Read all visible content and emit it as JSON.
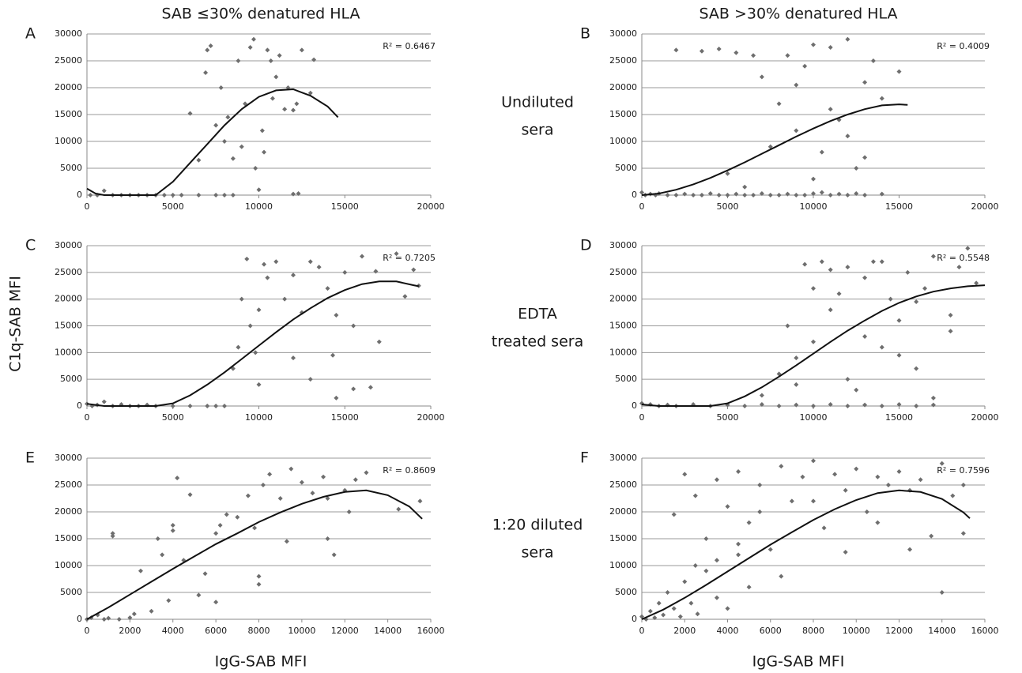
{
  "figure": {
    "column_titles": [
      "SAB ≤30% denatured HLA",
      "SAB >30% denatured HLA"
    ],
    "row_labels": [
      [
        "Undiluted",
        "sera"
      ],
      [
        "EDTA",
        "treated sera"
      ],
      [
        "1:20 diluted",
        "sera"
      ]
    ],
    "y_label": "C1q-SAB MFI",
    "x_label": "IgG-SAB MFI"
  },
  "chart_data": [
    {
      "type": "scatter",
      "panel": "A",
      "annotation": "R² = 0.6467",
      "xlim": [
        0,
        20000
      ],
      "xticks": [
        0,
        5000,
        10000,
        15000,
        20000
      ],
      "ylim": [
        0,
        30000
      ],
      "yticks": [
        0,
        5000,
        10000,
        15000,
        20000,
        25000,
        30000
      ],
      "grid": true,
      "color": "#6e6e6e",
      "trend_color": "#111111",
      "points": {
        "x": [
          200,
          600,
          1000,
          1500,
          2000,
          2500,
          3000,
          3500,
          4000,
          4500,
          5000,
          5500,
          6500,
          7500,
          8000,
          8500,
          6000,
          6500,
          6900,
          7000,
          7200,
          7500,
          7800,
          8000,
          8200,
          8500,
          8800,
          9000,
          9200,
          9500,
          9700,
          9800,
          10000,
          10200,
          10300,
          10500,
          10700,
          10800,
          11000,
          11200,
          11500,
          11700,
          12000,
          12200,
          12300,
          12500,
          13000,
          13200,
          12000
        ],
        "y": [
          0,
          0,
          800,
          0,
          0,
          0,
          0,
          0,
          0,
          0,
          0,
          0,
          0,
          0,
          0,
          0,
          15200,
          6500,
          22800,
          27000,
          27800,
          13000,
          20000,
          10000,
          14500,
          6800,
          25000,
          9000,
          17000,
          27500,
          29000,
          5000,
          1000,
          12000,
          8000,
          27000,
          25000,
          18000,
          22000,
          26000,
          16000,
          20000,
          15800,
          17000,
          300,
          27000,
          19000,
          25200,
          200
        ]
      },
      "trend": {
        "x": [
          0,
          500,
          1000,
          2000,
          3000,
          4000,
          5000,
          6000,
          7000,
          8000,
          9000,
          10000,
          11000,
          12000,
          13000,
          14000,
          14600
        ],
        "y": [
          1200,
          300,
          0,
          0,
          0,
          0,
          2500,
          6000,
          9500,
          13000,
          16000,
          18300,
          19500,
          19700,
          18500,
          16500,
          14500
        ]
      }
    },
    {
      "type": "scatter",
      "panel": "B",
      "annotation": "R² = 0.4009",
      "xlim": [
        0,
        20000
      ],
      "xticks": [
        0,
        5000,
        10000,
        15000,
        20000
      ],
      "ylim": [
        0,
        30000
      ],
      "yticks": [
        0,
        5000,
        10000,
        15000,
        20000,
        25000,
        30000
      ],
      "grid": true,
      "color": "#6e6e6e",
      "trend_color": "#111111",
      "points": {
        "x": [
          0,
          200,
          500,
          800,
          1000,
          1500,
          2000,
          2500,
          3000,
          3500,
          4000,
          4500,
          5000,
          5500,
          6000,
          6500,
          7000,
          7500,
          8000,
          8500,
          9000,
          9500,
          10000,
          10500,
          11000,
          11500,
          12000,
          12500,
          13000,
          14000,
          2000,
          3500,
          4500,
          5500,
          6500,
          7000,
          8000,
          8500,
          9000,
          9500,
          10000,
          10500,
          11000,
          11500,
          12000,
          12500,
          13000,
          13500,
          14000,
          15000,
          5000,
          6000,
          7500,
          9000,
          10000,
          11000,
          12000,
          13000
        ],
        "y": [
          500,
          0,
          200,
          0,
          300,
          0,
          0,
          200,
          0,
          0,
          300,
          0,
          0,
          200,
          0,
          0,
          300,
          0,
          0,
          200,
          0,
          0,
          300,
          500,
          0,
          200,
          0,
          300,
          0,
          200,
          27000,
          26800,
          27200,
          26500,
          26000,
          22000,
          17000,
          26000,
          12000,
          24000,
          28000,
          8000,
          27500,
          14000,
          29000,
          5000,
          21000,
          25000,
          18000,
          23000,
          4000,
          1500,
          9000,
          20500,
          3000,
          16000,
          11000,
          7000
        ]
      },
      "trend": {
        "x": [
          0,
          1000,
          2000,
          3000,
          4000,
          5000,
          6000,
          7000,
          8000,
          9000,
          10000,
          11000,
          12000,
          13000,
          14000,
          15000,
          15500
        ],
        "y": [
          0,
          300,
          1000,
          2000,
          3200,
          4600,
          6100,
          7700,
          9300,
          10900,
          12400,
          13800,
          15000,
          16000,
          16700,
          16900,
          16800
        ]
      }
    },
    {
      "type": "scatter",
      "panel": "C",
      "annotation": "R² = 0.7205",
      "xlim": [
        0,
        20000
      ],
      "xticks": [
        0,
        5000,
        10000,
        15000,
        20000
      ],
      "ylim": [
        0,
        30000
      ],
      "yticks": [
        0,
        5000,
        10000,
        15000,
        20000,
        25000,
        30000
      ],
      "grid": true,
      "color": "#6e6e6e",
      "trend_color": "#111111",
      "points": {
        "x": [
          0,
          300,
          600,
          1000,
          1500,
          2000,
          2500,
          3000,
          3500,
          4000,
          5000,
          6000,
          7000,
          7500,
          8000,
          8500,
          8800,
          9000,
          9300,
          9500,
          9800,
          10000,
          10300,
          10500,
          11000,
          11500,
          12000,
          12500,
          13000,
          13500,
          14000,
          14300,
          14500,
          15000,
          15500,
          16000,
          16500,
          17000,
          18000,
          18500,
          19000,
          19300,
          10000,
          12000,
          13000,
          14500,
          15500,
          16800
        ],
        "y": [
          400,
          0,
          200,
          800,
          0,
          300,
          0,
          0,
          200,
          0,
          0,
          0,
          0,
          0,
          0,
          7000,
          11000,
          20000,
          27500,
          15000,
          10000,
          18000,
          26500,
          24000,
          27000,
          20000,
          24500,
          17500,
          27000,
          26000,
          22000,
          9500,
          17000,
          25000,
          15000,
          28000,
          3500,
          12000,
          28500,
          20500,
          25500,
          22500,
          4000,
          9000,
          5000,
          1500,
          3200,
          25200
        ]
      },
      "trend": {
        "x": [
          0,
          1000,
          2000,
          3000,
          4000,
          5000,
          6000,
          7000,
          8000,
          9000,
          10000,
          11000,
          12000,
          13000,
          14000,
          15000,
          16000,
          17000,
          18000,
          19000,
          19300
        ],
        "y": [
          400,
          0,
          0,
          0,
          0,
          500,
          2000,
          4000,
          6300,
          8800,
          11300,
          13800,
          16200,
          18300,
          20200,
          21700,
          22800,
          23300,
          23300,
          22600,
          22400
        ]
      }
    },
    {
      "type": "scatter",
      "panel": "D",
      "annotation": "R² = 0.5548",
      "xlim": [
        0,
        20000
      ],
      "xticks": [
        0,
        5000,
        10000,
        15000,
        20000
      ],
      "ylim": [
        0,
        30000
      ],
      "yticks": [
        0,
        5000,
        10000,
        15000,
        20000,
        25000,
        30000
      ],
      "grid": true,
      "color": "#6e6e6e",
      "trend_color": "#111111",
      "points": {
        "x": [
          0,
          500,
          1000,
          1500,
          2000,
          3000,
          4000,
          5000,
          6000,
          7000,
          8000,
          9000,
          10000,
          11000,
          12000,
          13000,
          14000,
          15000,
          16000,
          17000,
          7000,
          8000,
          8500,
          9000,
          9500,
          10000,
          10500,
          11000,
          11500,
          12000,
          12500,
          13000,
          13500,
          14000,
          14500,
          15000,
          15500,
          16000,
          16500,
          17000,
          18000,
          18500,
          19000,
          19500,
          9000,
          10000,
          11000,
          12000,
          13000,
          14000,
          15000,
          16000,
          17000,
          18000
        ],
        "y": [
          500,
          300,
          0,
          200,
          0,
          300,
          0,
          200,
          0,
          300,
          0,
          200,
          0,
          300,
          0,
          200,
          0,
          300,
          0,
          200,
          2000,
          6000,
          15000,
          9000,
          26500,
          12000,
          27000,
          18000,
          21000,
          26000,
          3000,
          24000,
          27000,
          11000,
          20000,
          16000,
          25000,
          7000,
          22000,
          28000,
          17000,
          26000,
          29500,
          23000,
          4000,
          22000,
          25500,
          5000,
          13000,
          27000,
          9500,
          19500,
          1500,
          14000
        ]
      },
      "trend": {
        "x": [
          0,
          1000,
          2000,
          3000,
          4000,
          5000,
          6000,
          7000,
          8000,
          9000,
          10000,
          11000,
          12000,
          13000,
          14000,
          15000,
          16000,
          17000,
          18000,
          19000,
          20000
        ],
        "y": [
          300,
          0,
          0,
          0,
          0,
          500,
          1800,
          3500,
          5500,
          7600,
          9800,
          12000,
          14100,
          16000,
          17800,
          19300,
          20500,
          21400,
          22000,
          22400,
          22600
        ]
      }
    },
    {
      "type": "scatter",
      "panel": "E",
      "annotation": "R² = 0.8609",
      "xlim": [
        0,
        16000
      ],
      "xticks": [
        0,
        2000,
        4000,
        6000,
        8000,
        10000,
        12000,
        14000,
        16000
      ],
      "ylim": [
        0,
        30000
      ],
      "yticks": [
        0,
        5000,
        10000,
        15000,
        20000,
        25000,
        30000
      ],
      "grid": true,
      "color": "#6e6e6e",
      "trend_color": "#111111",
      "points": {
        "x": [
          0,
          200,
          500,
          800,
          1000,
          1200,
          1500,
          2000,
          2200,
          2500,
          3000,
          3300,
          3500,
          3800,
          4000,
          4200,
          4500,
          4800,
          5200,
          5500,
          6000,
          6200,
          6500,
          7000,
          7500,
          7800,
          8000,
          8200,
          8500,
          9000,
          9500,
          10000,
          10500,
          11000,
          11200,
          11500,
          12000,
          12200,
          12500,
          13000,
          14500,
          15500,
          1200,
          4000,
          6000,
          8000,
          9300,
          11200
        ],
        "y": [
          0,
          300,
          800,
          0,
          200,
          15500,
          0,
          300,
          1000,
          9000,
          1500,
          15000,
          12000,
          3500,
          17500,
          26300,
          11000,
          23200,
          4500,
          8500,
          16000,
          17500,
          19500,
          19000,
          23000,
          17000,
          6500,
          25000,
          27000,
          22500,
          28000,
          25500,
          23500,
          26500,
          22500,
          12000,
          24000,
          20000,
          26000,
          27300,
          20500,
          22000,
          16000,
          16500,
          3200,
          8000,
          14500,
          15000
        ]
      },
      "trend": {
        "x": [
          0,
          1000,
          2000,
          3000,
          4000,
          5000,
          6000,
          7000,
          8000,
          9000,
          10000,
          11000,
          12000,
          13000,
          14000,
          15000,
          15600
        ],
        "y": [
          0,
          2200,
          4600,
          7000,
          9400,
          11700,
          14000,
          16000,
          18100,
          19900,
          21500,
          22800,
          23700,
          24000,
          23100,
          21000,
          18700
        ]
      }
    },
    {
      "type": "scatter",
      "panel": "F",
      "annotation": "R² = 0.7596",
      "xlim": [
        0,
        16000
      ],
      "xticks": [
        0,
        2000,
        4000,
        6000,
        8000,
        10000,
        12000,
        14000,
        16000
      ],
      "ylim": [
        0,
        30000
      ],
      "yticks": [
        0,
        5000,
        10000,
        15000,
        20000,
        25000,
        30000
      ],
      "grid": true,
      "color": "#6e6e6e",
      "trend_color": "#111111",
      "points": {
        "x": [
          0,
          200,
          400,
          600,
          800,
          1000,
          1200,
          1500,
          1800,
          2000,
          2300,
          2600,
          3000,
          3500,
          4000,
          4500,
          5000,
          1500,
          2000,
          2500,
          3000,
          3500,
          4000,
          4500,
          5000,
          5500,
          6000,
          6500,
          7000,
          7500,
          8000,
          8500,
          9000,
          9500,
          10000,
          10500,
          11000,
          11500,
          12000,
          12500,
          13000,
          13500,
          14000,
          14500,
          15000,
          2500,
          3500,
          4500,
          5500,
          6500,
          8000,
          9500,
          11000,
          12500,
          14000,
          15000
        ],
        "y": [
          500,
          0,
          1500,
          300,
          3000,
          800,
          5000,
          2000,
          500,
          7000,
          3000,
          1000,
          9000,
          4000,
          2000,
          12000,
          6000,
          19500,
          27000,
          23000,
          15000,
          26000,
          21000,
          27500,
          18000,
          25000,
          13000,
          28500,
          22000,
          26500,
          29500,
          17000,
          27000,
          24000,
          28000,
          20000,
          26500,
          25000,
          27500,
          13000,
          26000,
          15500,
          29000,
          23000,
          16000,
          10000,
          11000,
          14000,
          20000,
          8000,
          22000,
          12500,
          18000,
          24000,
          5000,
          25000
        ]
      },
      "trend": {
        "x": [
          0,
          1000,
          2000,
          3000,
          4000,
          5000,
          6000,
          7000,
          8000,
          9000,
          10000,
          11000,
          12000,
          13000,
          14000,
          15000,
          15300
        ],
        "y": [
          0,
          1800,
          4000,
          6400,
          8900,
          11400,
          13900,
          16200,
          18500,
          20500,
          22200,
          23500,
          24000,
          23700,
          22400,
          19900,
          18800
        ]
      }
    }
  ]
}
